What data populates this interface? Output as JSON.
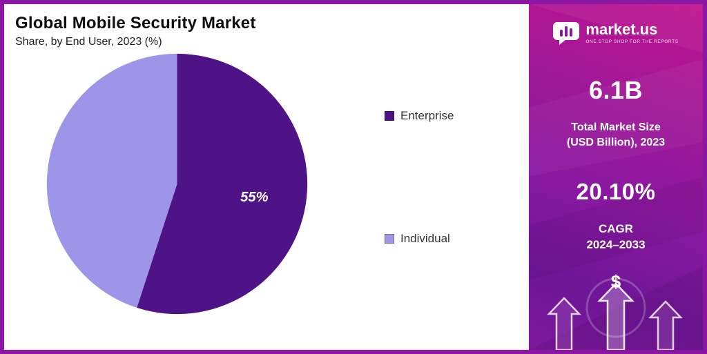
{
  "chart": {
    "title": "Global Mobile Security Market",
    "subtitle": "Share, by End User, 2023 (%)"
  },
  "chart_data": {
    "type": "pie",
    "title": "Global Mobile Security Market",
    "subtitle": "Share, by End User, 2023 (%)",
    "series": [
      {
        "name": "Enterprise",
        "value": 55,
        "color": "#4e1386",
        "label": "55%"
      },
      {
        "name": "Individual",
        "value": 45,
        "color": "#9e94e8",
        "label": ""
      }
    ],
    "start_angle_deg": -90,
    "direction": "clockwise",
    "legend_position": "right"
  },
  "legend": {
    "items": [
      {
        "label": "Enterprise",
        "color": "#4e1386"
      },
      {
        "label": "Individual",
        "color": "#9e94e8"
      }
    ]
  },
  "sidebar": {
    "logo_text": "market.us",
    "logo_tagline": "ONE STOP SHOP FOR THE REPORTS",
    "stats": [
      {
        "value": "6.1B",
        "label_line1": "Total Market Size",
        "label_line2": "(USD Billion), 2023"
      },
      {
        "value": "20.10%",
        "label_line1": "CAGR",
        "label_line2": "2024–2033"
      }
    ],
    "dollar_symbol": "$"
  },
  "colors": {
    "frame_border": "#8c16a4",
    "panel_gradient_top": "#c0148e",
    "panel_gradient_bottom": "#7d189b",
    "title_text": "#0d0d0d",
    "slice_label_text": "#ffffff"
  }
}
